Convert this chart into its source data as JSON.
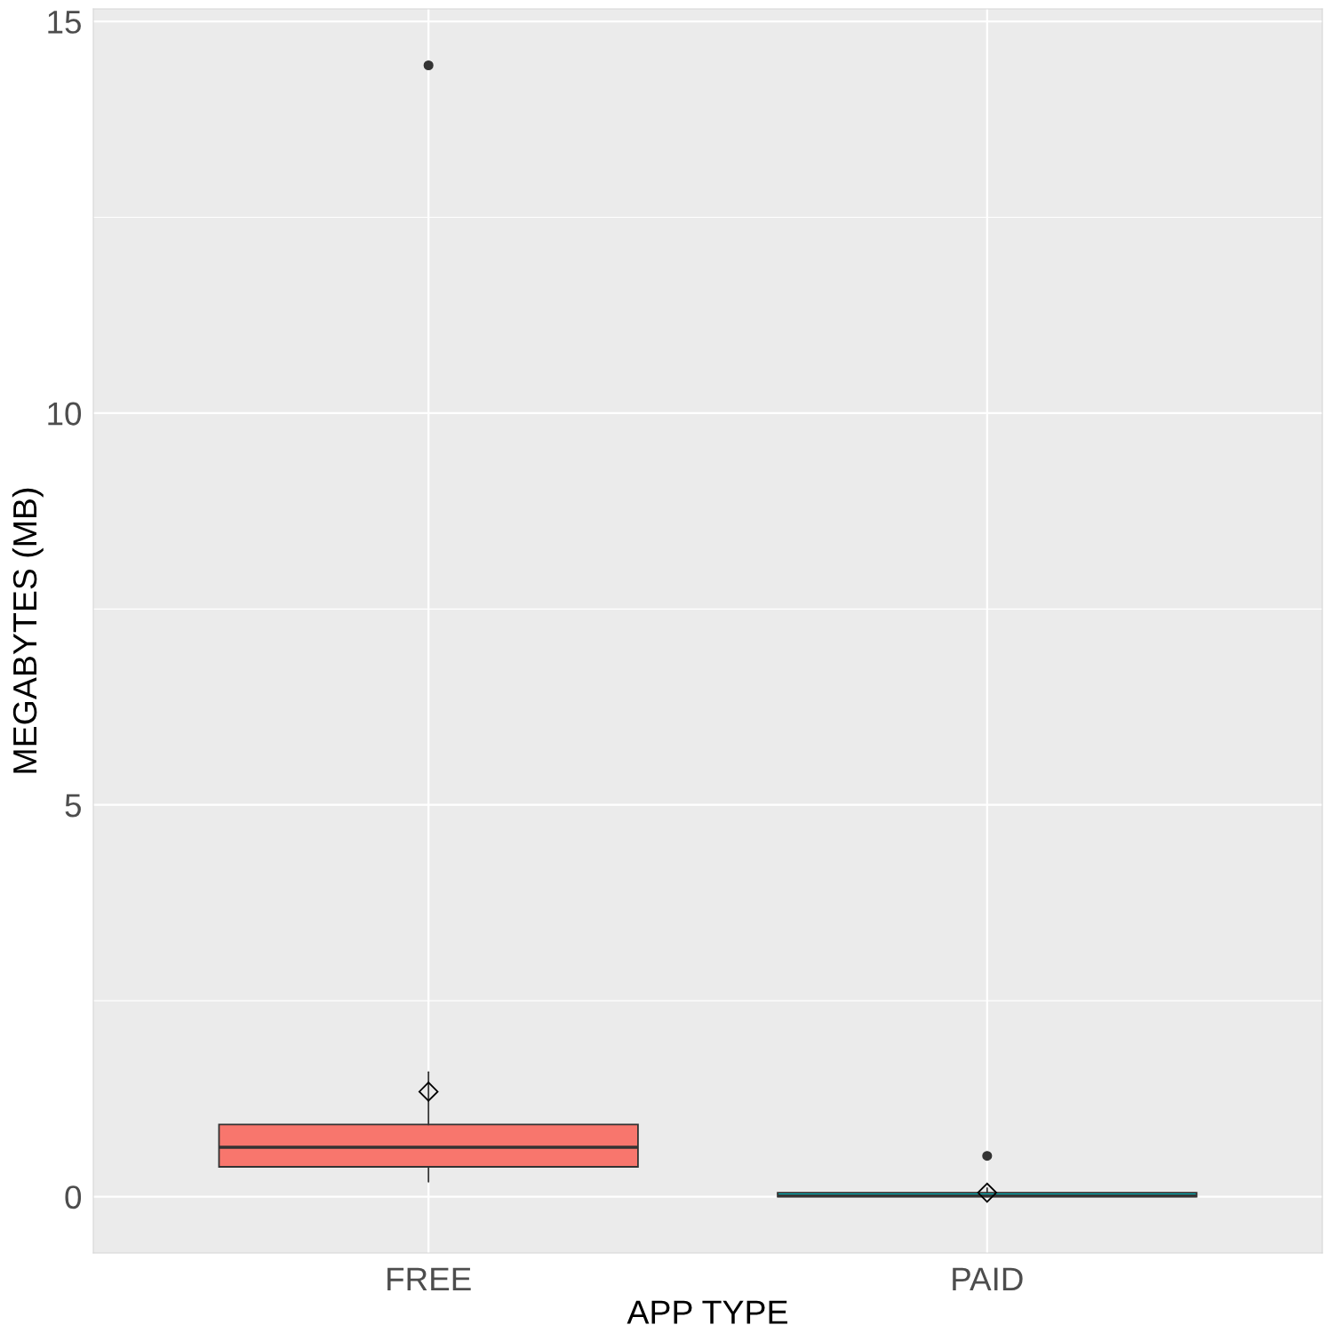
{
  "chart_data": {
    "type": "box",
    "xlabel": "APP TYPE",
    "ylabel": "MEGABYTES (MB)",
    "categories": [
      "FREE",
      "PAID"
    ],
    "colors": [
      "#f8766d",
      "#00bfc4"
    ],
    "boxes": [
      {
        "low": 0.19,
        "q1": 0.38,
        "median": 0.63,
        "q3": 0.92,
        "high": 1.59,
        "mean": 1.34,
        "outliers": [
          14.44
        ]
      },
      {
        "low": 0.0,
        "q1": 0.0,
        "median": 0.01,
        "q3": 0.05,
        "high": 0.11,
        "mean": 0.05,
        "outliers": [
          0.52
        ]
      }
    ],
    "ylim": [
      -0.72,
      15.16
    ],
    "yticks": [
      0,
      5,
      10,
      15
    ],
    "grid": true
  }
}
